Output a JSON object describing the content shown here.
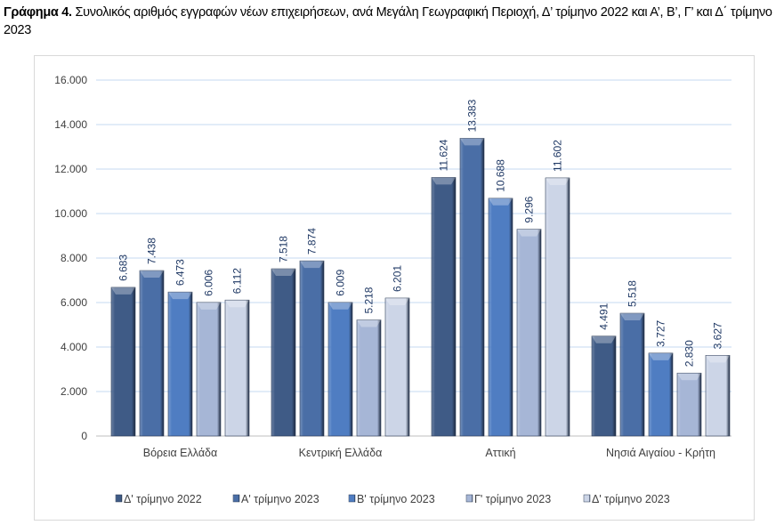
{
  "title": {
    "bold": "Γράφημα 4.",
    "text": " Συνολικός αριθμός εγγραφών νέων επιχειρήσεων, ανά Μεγάλη Γεωγραφική Περιοχή, Δ’ τρίμηνο 2022 και Α’, Β’, Γ’ και Δ΄ τρίμηνο 2023"
  },
  "chart_data": {
    "type": "bar",
    "title": "Συνολικός αριθμός εγγραφών νέων επιχειρήσεων, ανά Μεγάλη Γεωγραφική Περιοχή",
    "categories": [
      "Βόρεια Ελλάδα",
      "Κεντρική Ελλάδα",
      "Αττική",
      "Νησιά Αιγαίου - Κρήτη"
    ],
    "series": [
      {
        "name": "Δ' τρίμηνο 2022",
        "color": "#3f5b86",
        "values": [
          6683,
          7518,
          11624,
          4491
        ]
      },
      {
        "name": "Α' τρίμηνο 2023",
        "color": "#4a6ea6",
        "values": [
          7438,
          7874,
          13383,
          5518
        ]
      },
      {
        "name": "Β' τρίμηνο 2023",
        "color": "#4f7dc2",
        "values": [
          6473,
          6009,
          10688,
          3727
        ]
      },
      {
        "name": "Γ' τρίμηνο 2023",
        "color": "#a6b6d6",
        "values": [
          6006,
          5218,
          9296,
          2830
        ]
      },
      {
        "name": "Δ' τρίμηνο 2023",
        "color": "#ccd5e7",
        "values": [
          6112,
          6201,
          11602,
          3627
        ]
      }
    ],
    "ylim": [
      0,
      16000
    ],
    "yticks": [
      0,
      2000,
      4000,
      6000,
      8000,
      10000,
      12000,
      14000,
      16000
    ],
    "ytick_labels": [
      "0",
      "2.000",
      "4.000",
      "6.000",
      "8.000",
      "10.000",
      "12.000",
      "14.000",
      "16.000"
    ],
    "grid": true,
    "legend": "bottom",
    "xlabel": "",
    "ylabel": ""
  }
}
